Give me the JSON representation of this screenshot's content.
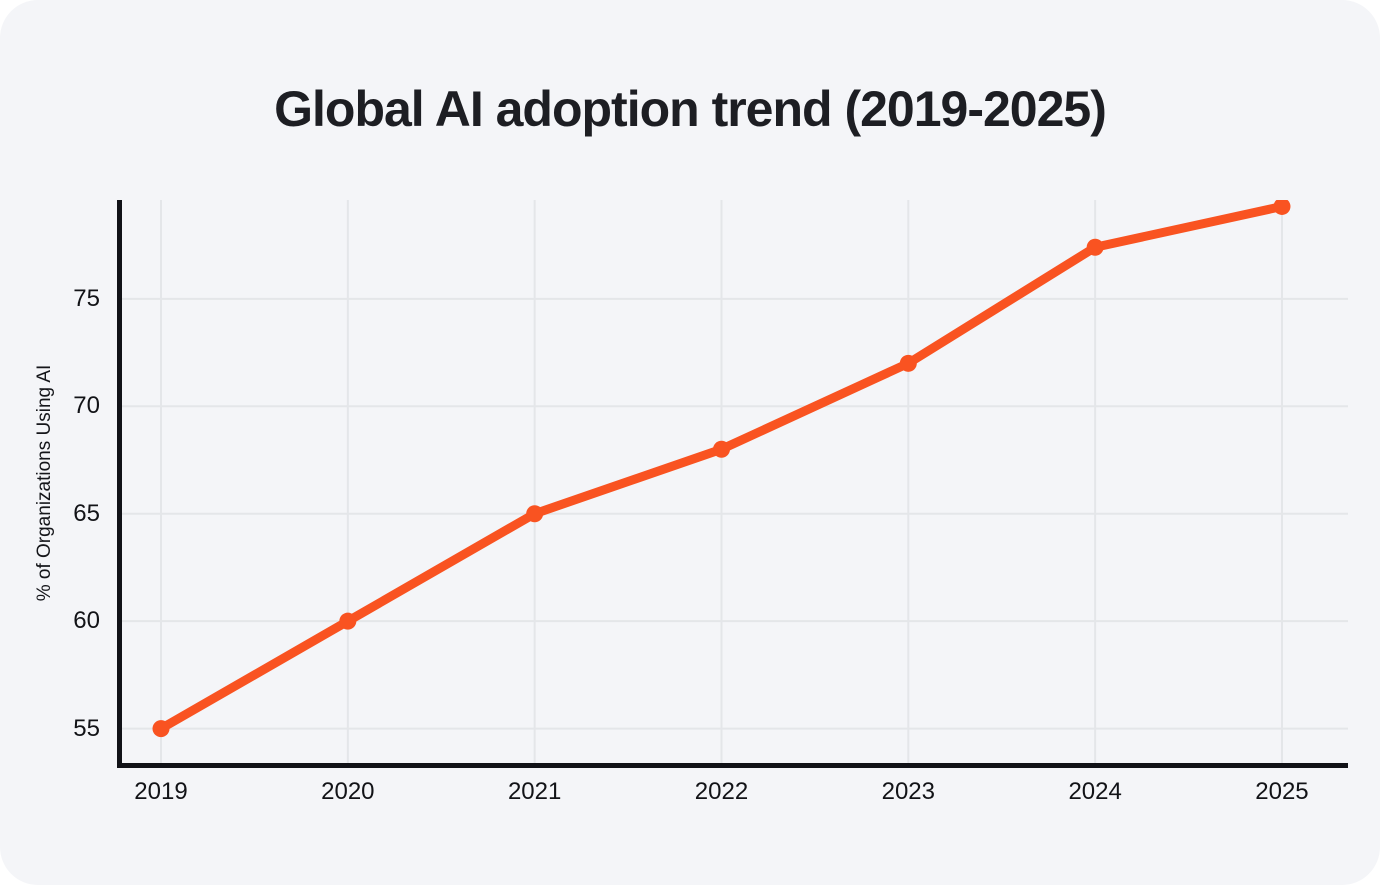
{
  "page": {
    "background": "#ffffff",
    "card_background": "#f4f5f8"
  },
  "title": "Global AI adoption trend (2019-2025)",
  "chart_data": {
    "type": "line",
    "title": "Global AI adoption trend (2019-2025)",
    "categories": [
      "2019",
      "2020",
      "2021",
      "2022",
      "2023",
      "2024",
      "2025"
    ],
    "series": [
      {
        "name": "% of Organizations Using AI",
        "values": [
          55,
          60,
          65,
          68,
          72,
          77.4,
          79.3
        ]
      }
    ],
    "xlabel": "",
    "ylabel": "% of Organizations Using AI",
    "yticks": [
      55,
      60,
      65,
      70,
      75
    ],
    "ylim": [
      53.4,
      79.6
    ],
    "grid": true,
    "legend_position": "none",
    "colors": {
      "line": "#f95321",
      "marker": "#f95321",
      "gridline": "#e4e6e9",
      "axis": "#111217",
      "title_text": "#1d1e23",
      "tick_text": "#121317"
    },
    "marker_style": "filled-circle"
  }
}
